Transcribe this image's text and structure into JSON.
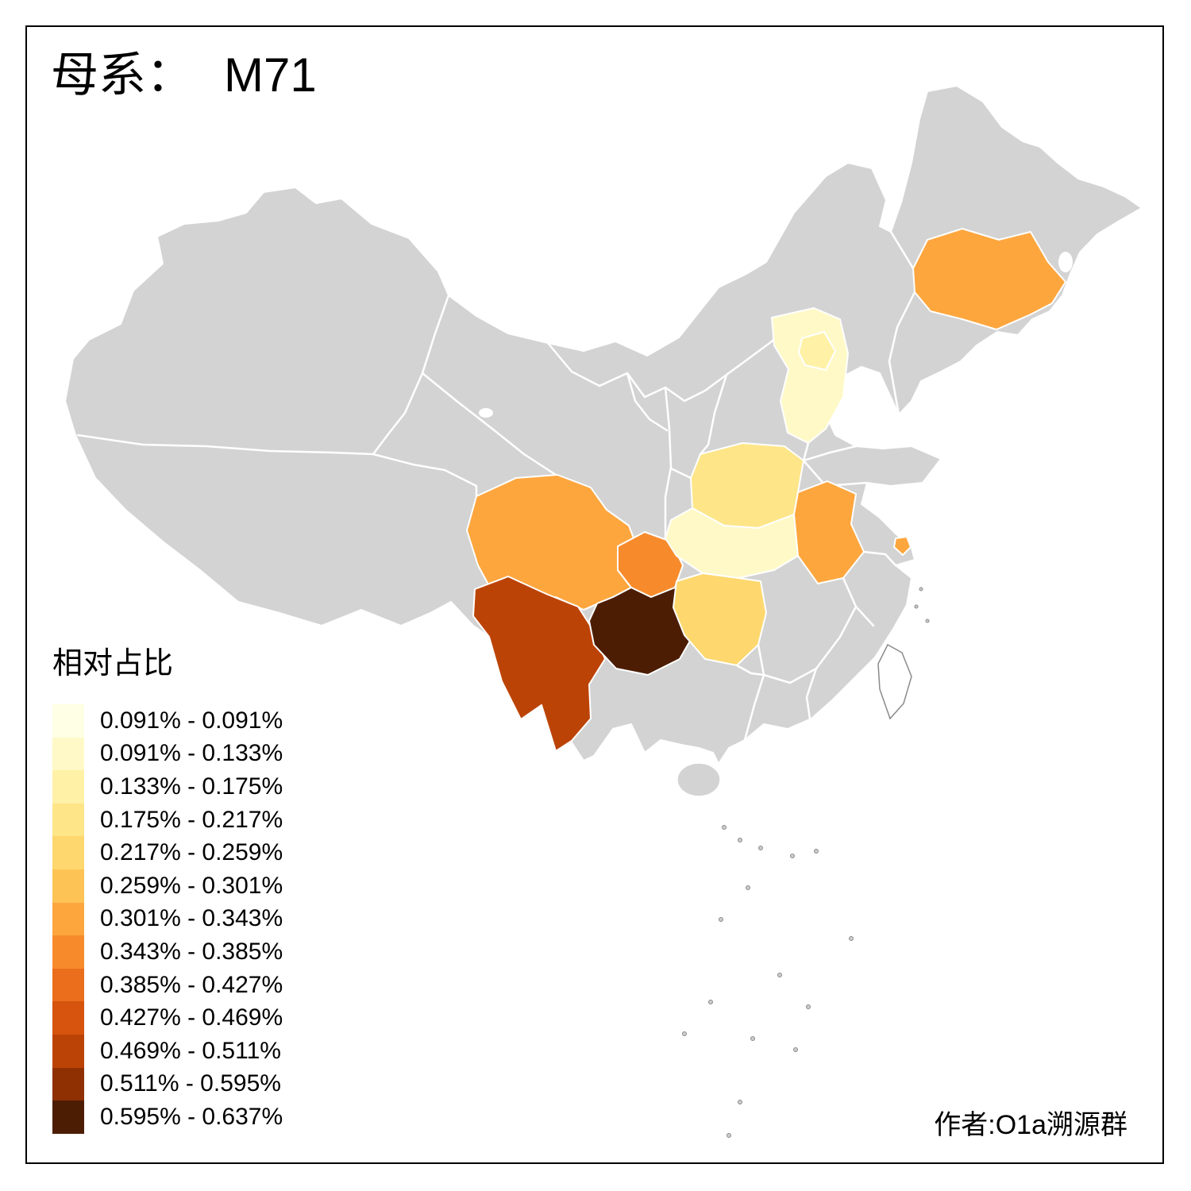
{
  "title_prefix": "母系：",
  "title_value": "M71",
  "author": "作者:O1a溯源群",
  "legend": {
    "title": "相对占比",
    "bins": [
      {
        "label": "0.091% - 0.091%",
        "color": "#FFFFE5"
      },
      {
        "label": "0.091% - 0.133%",
        "color": "#FFF9C7"
      },
      {
        "label": "0.133% - 0.175%",
        "color": "#FFF1A6"
      },
      {
        "label": "0.175% - 0.217%",
        "color": "#FEE588"
      },
      {
        "label": "0.217% - 0.259%",
        "color": "#FED86E"
      },
      {
        "label": "0.259% - 0.301%",
        "color": "#FEC355"
      },
      {
        "label": "0.301% - 0.343%",
        "color": "#FEA63E"
      },
      {
        "label": "0.343% - 0.385%",
        "color": "#F78B2C"
      },
      {
        "label": "0.385% - 0.427%",
        "color": "#EA6E1B"
      },
      {
        "label": "0.427% - 0.469%",
        "color": "#D6540E"
      },
      {
        "label": "0.469% - 0.511%",
        "color": "#BC4306"
      },
      {
        "label": "0.511% - 0.595%",
        "color": "#8F3003"
      },
      {
        "label": "0.595% - 0.637%",
        "color": "#4C1D03"
      }
    ]
  },
  "map": {
    "base_color": "#D3D3D3",
    "border_color": "#FFFFFF",
    "provinces": [
      {
        "id": "jilin",
        "name": "吉林",
        "bin": "0.301% - 0.343%",
        "color": "#FEA63E"
      },
      {
        "id": "beijing",
        "name": "北京",
        "bin": "0.133% - 0.175%",
        "color": "#FFF1A6"
      },
      {
        "id": "hebei",
        "name": "河北",
        "bin": "0.091% - 0.133%",
        "color": "#FFF9C7"
      },
      {
        "id": "henan",
        "name": "河南",
        "bin": "0.175% - 0.217%",
        "color": "#FEE588"
      },
      {
        "id": "anhui",
        "name": "安徽",
        "bin": "0.301% - 0.343%",
        "color": "#FEA63E"
      },
      {
        "id": "shanghai",
        "name": "上海",
        "bin": "0.301% - 0.343%",
        "color": "#FEA63E"
      },
      {
        "id": "hubei",
        "name": "湖北",
        "bin": "0.091% - 0.133%",
        "color": "#FFF9C7"
      },
      {
        "id": "hunan",
        "name": "湖南",
        "bin": "0.217% - 0.259%",
        "color": "#FED86E"
      },
      {
        "id": "sichuan",
        "name": "四川",
        "bin": "0.301% - 0.343%",
        "color": "#FEA63E"
      },
      {
        "id": "chongqing",
        "name": "重庆",
        "bin": "0.343% - 0.385%",
        "color": "#F78B2C"
      },
      {
        "id": "yunnan",
        "name": "云南",
        "bin": "0.469% - 0.511%",
        "color": "#BC4306"
      },
      {
        "id": "guizhou",
        "name": "贵州",
        "bin": "0.595% - 0.637%",
        "color": "#4C1D03"
      }
    ]
  },
  "chart_data": {
    "type": "choropleth",
    "region": "China provinces",
    "title": "母系： M71",
    "legend_title": "相对占比",
    "legend_position": "bottom-left",
    "bins": [
      "0.091% - 0.091%",
      "0.091% - 0.133%",
      "0.133% - 0.175%",
      "0.175% - 0.217%",
      "0.217% - 0.259%",
      "0.259% - 0.301%",
      "0.301% - 0.343%",
      "0.343% - 0.385%",
      "0.385% - 0.427%",
      "0.427% - 0.469%",
      "0.469% - 0.511%",
      "0.511% - 0.595%",
      "0.595% - 0.637%"
    ],
    "values": [
      {
        "province": "吉林",
        "bin": "0.301% - 0.343%"
      },
      {
        "province": "北京",
        "bin": "0.133% - 0.175%"
      },
      {
        "province": "河北",
        "bin": "0.091% - 0.133%"
      },
      {
        "province": "河南",
        "bin": "0.175% - 0.217%"
      },
      {
        "province": "安徽",
        "bin": "0.301% - 0.343%"
      },
      {
        "province": "上海",
        "bin": "0.301% - 0.343%"
      },
      {
        "province": "湖北",
        "bin": "0.091% - 0.133%"
      },
      {
        "province": "湖南",
        "bin": "0.217% - 0.259%"
      },
      {
        "province": "四川",
        "bin": "0.301% - 0.343%"
      },
      {
        "province": "重庆",
        "bin": "0.343% - 0.385%"
      },
      {
        "province": "云南",
        "bin": "0.469% - 0.511%"
      },
      {
        "province": "贵州",
        "bin": "0.595% - 0.637%"
      }
    ],
    "no_data_color": "#D3D3D3"
  }
}
